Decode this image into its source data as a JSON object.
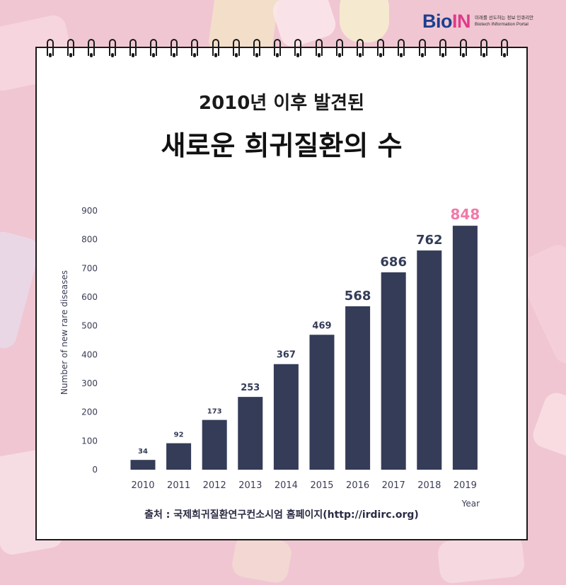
{
  "logo": {
    "mark_a": "Bio",
    "mark_b": "IN",
    "tagline_ko": "미래를 선도하는 정보 인큐리안",
    "tagline_en": "Biotech INformation Portal"
  },
  "title": {
    "line1": "2010년 이후 발견된",
    "line2": "새로운 희귀질환의 수"
  },
  "source": "출처 : 국제희귀질환연구컨소시엄 홈페이지(http://irdirc.org)",
  "colors": {
    "bar": "#343c58",
    "highlight": "#f07aa8",
    "background": "#f0c6d2"
  },
  "chart_data": {
    "type": "bar",
    "categories": [
      "2010",
      "2011",
      "2012",
      "2013",
      "2014",
      "2015",
      "2016",
      "2017",
      "2018",
      "2019"
    ],
    "values": [
      34,
      92,
      173,
      253,
      367,
      469,
      568,
      686,
      762,
      848
    ],
    "data_labels": [
      "34",
      "92",
      "173",
      "253",
      "367",
      "469",
      "568",
      "686",
      "762",
      "848"
    ],
    "ylabel": "Number of new rare diseases",
    "xlabel": "Year",
    "ylim": [
      0,
      900
    ],
    "yticks": [
      "0",
      "100",
      "200",
      "300",
      "400",
      "500",
      "600",
      "700",
      "800",
      "900"
    ],
    "highlight_category": "2019",
    "grid": false,
    "legend": "none"
  }
}
